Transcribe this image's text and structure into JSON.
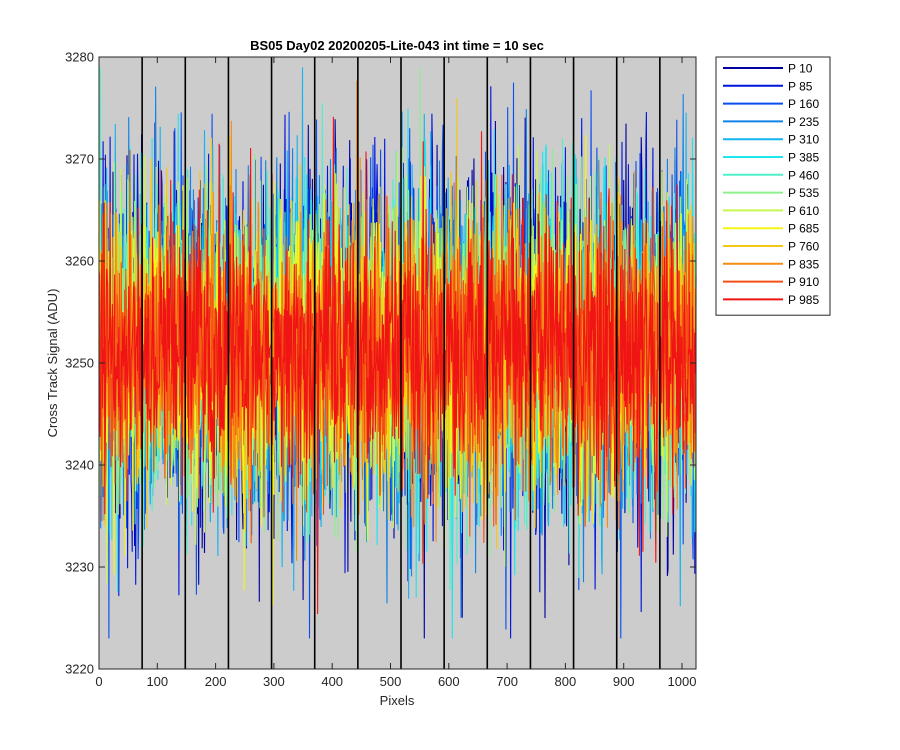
{
  "chart_data": {
    "type": "line",
    "title": "BS05 Day02 20200205-Lite-043 int time = 10 sec",
    "xlabel": "Pixels",
    "ylabel": "Cross Track Signal (ADU)",
    "xlim": [
      0,
      1024
    ],
    "ylim": [
      3220,
      3280
    ],
    "xticks": [
      0,
      100,
      200,
      300,
      400,
      500,
      600,
      700,
      800,
      900,
      1000
    ],
    "yticks": [
      3220,
      3230,
      3240,
      3250,
      3260,
      3270,
      3280
    ],
    "grid": false,
    "background": "#cccccc",
    "vertical_markers": [
      74,
      148,
      222,
      296,
      370,
      444,
      518,
      592,
      666,
      740,
      814,
      888,
      962
    ],
    "legend_position": "outside-top-right",
    "noise_model": {
      "mean": 3251.5,
      "typical_range": [
        3235,
        3267
      ],
      "min": 3223,
      "max": 3279
    },
    "series": [
      {
        "name": "P 10",
        "color": "#0000a0"
      },
      {
        "name": "P 85",
        "color": "#0014dc"
      },
      {
        "name": "P 160",
        "color": "#0a4ef0"
      },
      {
        "name": "P 235",
        "color": "#1082e8"
      },
      {
        "name": "P 310",
        "color": "#14b4f0"
      },
      {
        "name": "P 385",
        "color": "#1ee6ee"
      },
      {
        "name": "P 460",
        "color": "#50f0c8"
      },
      {
        "name": "P 535",
        "color": "#8cf08c"
      },
      {
        "name": "P 610",
        "color": "#c8f550"
      },
      {
        "name": "P 685",
        "color": "#f5f514"
      },
      {
        "name": "P 760",
        "color": "#f5c814"
      },
      {
        "name": "P 835",
        "color": "#f58c14"
      },
      {
        "name": "P 910",
        "color": "#f55014"
      },
      {
        "name": "P 985",
        "color": "#f01414"
      }
    ]
  }
}
